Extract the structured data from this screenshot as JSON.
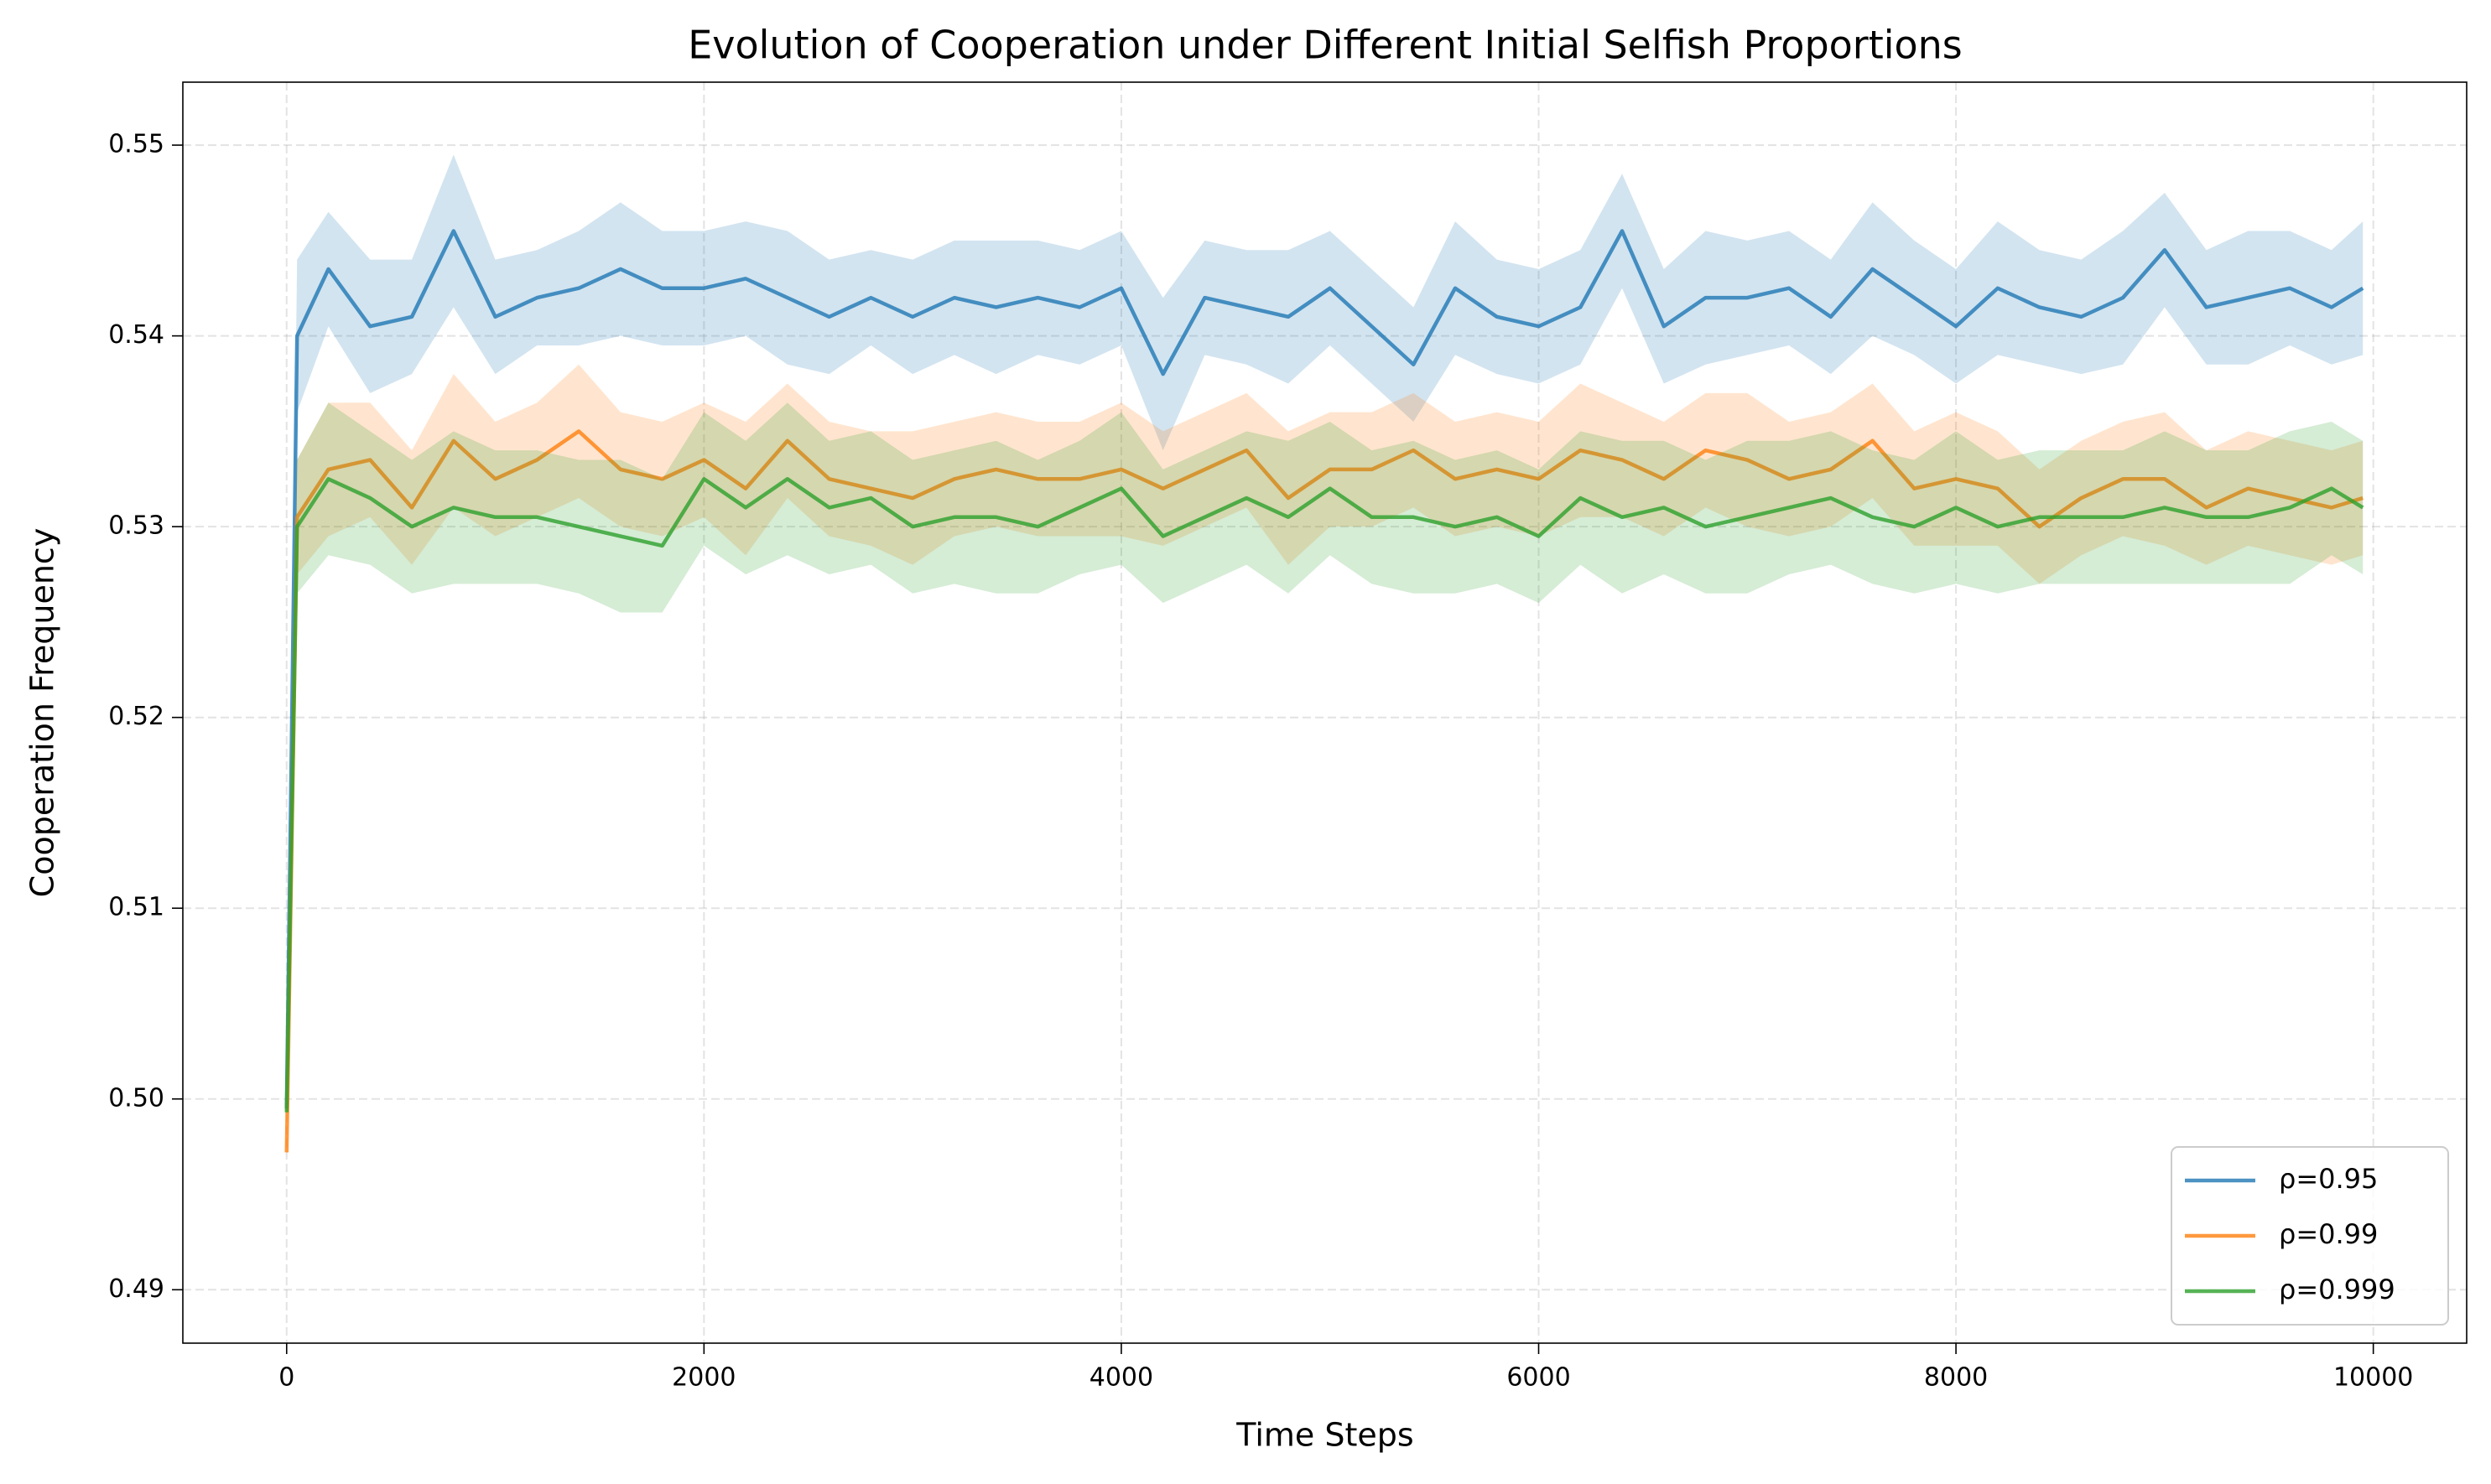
{
  "chart_data": {
    "type": "line",
    "title": "Evolution of Cooperation under Different Initial Selfish Proportions",
    "xlabel": "Time Steps",
    "ylabel": "Cooperation Frequency",
    "x": [
      0,
      50,
      200,
      400,
      600,
      800,
      1000,
      1200,
      1400,
      1600,
      1800,
      2000,
      2200,
      2400,
      2600,
      2800,
      3000,
      3200,
      3400,
      3600,
      3800,
      4000,
      4200,
      4400,
      4600,
      4800,
      5000,
      5200,
      5400,
      5600,
      5800,
      6000,
      6200,
      6400,
      6600,
      6800,
      7000,
      7200,
      7400,
      7600,
      7800,
      8000,
      8200,
      8400,
      8600,
      8800,
      9000,
      9200,
      9400,
      9600,
      9800,
      9950
    ],
    "series": [
      {
        "name": "ρ=0.95",
        "color": "#1f77b4",
        "values": [
          0.4995,
          0.54,
          0.5435,
          0.5405,
          0.541,
          0.5455,
          0.541,
          0.542,
          0.5425,
          0.5435,
          0.5425,
          0.5425,
          0.543,
          0.542,
          0.541,
          0.542,
          0.541,
          0.542,
          0.5415,
          0.542,
          0.5415,
          0.5425,
          0.538,
          0.542,
          0.5415,
          0.541,
          0.5425,
          0.5405,
          0.5385,
          0.5425,
          0.541,
          0.5405,
          0.5415,
          0.5455,
          0.5405,
          0.542,
          0.542,
          0.5425,
          0.541,
          0.5435,
          0.542,
          0.5405,
          0.5425,
          0.5415,
          0.541,
          0.542,
          0.5445,
          0.5415,
          0.542,
          0.5425,
          0.5415,
          0.5425
        ],
        "error": [
          0.0003,
          0.004,
          0.003,
          0.0035,
          0.003,
          0.004,
          0.003,
          0.0025,
          0.003,
          0.0035,
          0.003,
          0.003,
          0.003,
          0.0035,
          0.003,
          0.0025,
          0.003,
          0.003,
          0.0035,
          0.003,
          0.003,
          0.003,
          0.004,
          0.003,
          0.003,
          0.0035,
          0.003,
          0.003,
          0.003,
          0.0035,
          0.003,
          0.003,
          0.003,
          0.003,
          0.003,
          0.0035,
          0.003,
          0.003,
          0.003,
          0.0035,
          0.003,
          0.003,
          0.0035,
          0.003,
          0.003,
          0.0035,
          0.003,
          0.003,
          0.0035,
          0.003,
          0.003,
          0.0035
        ]
      },
      {
        "name": "ρ=0.99",
        "color": "#ff7f0e",
        "values": [
          0.4972,
          0.5305,
          0.533,
          0.5335,
          0.531,
          0.5345,
          0.5325,
          0.5335,
          0.535,
          0.533,
          0.5325,
          0.5335,
          0.532,
          0.5345,
          0.5325,
          0.532,
          0.5315,
          0.5325,
          0.533,
          0.5325,
          0.5325,
          0.533,
          0.532,
          0.533,
          0.534,
          0.5315,
          0.533,
          0.533,
          0.534,
          0.5325,
          0.533,
          0.5325,
          0.534,
          0.5335,
          0.5325,
          0.534,
          0.5335,
          0.5325,
          0.533,
          0.5345,
          0.532,
          0.5325,
          0.532,
          0.53,
          0.5315,
          0.5325,
          0.5325,
          0.531,
          0.532,
          0.5315,
          0.531,
          0.5315
        ],
        "error": [
          0.0003,
          0.003,
          0.0035,
          0.003,
          0.003,
          0.0035,
          0.003,
          0.003,
          0.0035,
          0.003,
          0.003,
          0.003,
          0.0035,
          0.003,
          0.003,
          0.003,
          0.0035,
          0.003,
          0.003,
          0.003,
          0.003,
          0.0035,
          0.003,
          0.003,
          0.003,
          0.0035,
          0.003,
          0.003,
          0.003,
          0.003,
          0.003,
          0.003,
          0.0035,
          0.003,
          0.003,
          0.003,
          0.0035,
          0.003,
          0.003,
          0.003,
          0.003,
          0.0035,
          0.003,
          0.003,
          0.003,
          0.003,
          0.0035,
          0.003,
          0.003,
          0.003,
          0.003,
          0.003
        ]
      },
      {
        "name": "ρ=0.999",
        "color": "#2ca02c",
        "values": [
          0.4993,
          0.53,
          0.5325,
          0.5315,
          0.53,
          0.531,
          0.5305,
          0.5305,
          0.53,
          0.5295,
          0.529,
          0.5325,
          0.531,
          0.5325,
          0.531,
          0.5315,
          0.53,
          0.5305,
          0.5305,
          0.53,
          0.531,
          0.532,
          0.5295,
          0.5305,
          0.5315,
          0.5305,
          0.532,
          0.5305,
          0.5305,
          0.53,
          0.5305,
          0.5295,
          0.5315,
          0.5305,
          0.531,
          0.53,
          0.5305,
          0.531,
          0.5315,
          0.5305,
          0.53,
          0.531,
          0.53,
          0.5305,
          0.5305,
          0.5305,
          0.531,
          0.5305,
          0.5305,
          0.531,
          0.532,
          0.531
        ],
        "error": [
          0.0003,
          0.0035,
          0.004,
          0.0035,
          0.0035,
          0.004,
          0.0035,
          0.0035,
          0.0035,
          0.004,
          0.0035,
          0.0035,
          0.0035,
          0.004,
          0.0035,
          0.0035,
          0.0035,
          0.0035,
          0.004,
          0.0035,
          0.0035,
          0.004,
          0.0035,
          0.0035,
          0.0035,
          0.004,
          0.0035,
          0.0035,
          0.004,
          0.0035,
          0.0035,
          0.0035,
          0.0035,
          0.004,
          0.0035,
          0.0035,
          0.004,
          0.0035,
          0.0035,
          0.0035,
          0.0035,
          0.004,
          0.0035,
          0.0035,
          0.0035,
          0.0035,
          0.004,
          0.0035,
          0.0035,
          0.004,
          0.0035,
          0.0035
        ]
      }
    ],
    "xlim": [
      -497.5,
      10447.5
    ],
    "xticks": [
      0,
      2000,
      4000,
      6000,
      8000,
      10000
    ],
    "ylim": [
      0.4872,
      0.5533
    ],
    "yticks": [
      0.49,
      {
        "value": 0.5,
        "label": "0.50"
      },
      0.51,
      0.52,
      0.53,
      0.54,
      0.55
    ],
    "grid": true,
    "legend": "lower right"
  }
}
